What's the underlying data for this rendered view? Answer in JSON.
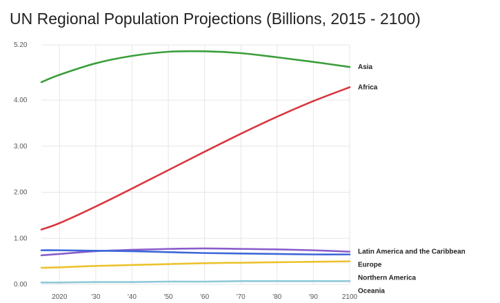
{
  "chart_data": {
    "type": "line",
    "title": "UN Regional Population Projections (Billions, 2015 - 2100)",
    "xlabel": "",
    "ylabel": "",
    "x": [
      2015,
      2020,
      2030,
      2040,
      2050,
      2060,
      2070,
      2080,
      2090,
      2100
    ],
    "xlim": [
      2015,
      2100
    ],
    "x_tick_values": [
      2020,
      2030,
      2040,
      2050,
      2060,
      2070,
      2080,
      2090,
      2100
    ],
    "x_tick_labels": [
      "2020",
      "'30",
      "'40",
      "'50",
      "'60",
      "'70",
      "'80",
      "'90",
      "2100"
    ],
    "ylim": [
      0,
      5.2
    ],
    "y_tick_values": [
      0,
      1,
      2,
      3,
      4,
      5.2
    ],
    "y_tick_labels": [
      "0.00",
      "1.00",
      "2.00",
      "3.00",
      "4.00",
      "5.20"
    ],
    "grid": true,
    "legend": "inline labels at right end of lines",
    "series": [
      {
        "name": "Asia",
        "color": "#3a9e3a",
        "values": [
          4.39,
          4.55,
          4.8,
          4.96,
          5.05,
          5.06,
          5.02,
          4.93,
          4.83,
          4.72
        ]
      },
      {
        "name": "Africa",
        "color": "#d9363e",
        "values": [
          1.19,
          1.33,
          1.69,
          2.08,
          2.48,
          2.88,
          3.27,
          3.64,
          3.98,
          4.28
        ]
      },
      {
        "name": "Latin America and the Caribbean",
        "color": "#8a5ccc",
        "values": [
          0.63,
          0.66,
          0.72,
          0.75,
          0.77,
          0.78,
          0.77,
          0.76,
          0.74,
          0.71
        ]
      },
      {
        "name": "Europe",
        "color": "#3d67d8",
        "values": [
          0.74,
          0.74,
          0.73,
          0.72,
          0.7,
          0.68,
          0.67,
          0.66,
          0.65,
          0.65
        ]
      },
      {
        "name": "Northern America",
        "color": "#ecc22c",
        "values": [
          0.36,
          0.37,
          0.4,
          0.42,
          0.44,
          0.46,
          0.47,
          0.48,
          0.49,
          0.5
        ]
      },
      {
        "name": "Oceania",
        "color": "#8ec8d8",
        "values": [
          0.04,
          0.04,
          0.05,
          0.05,
          0.06,
          0.06,
          0.07,
          0.07,
          0.07,
          0.07
        ]
      }
    ]
  }
}
